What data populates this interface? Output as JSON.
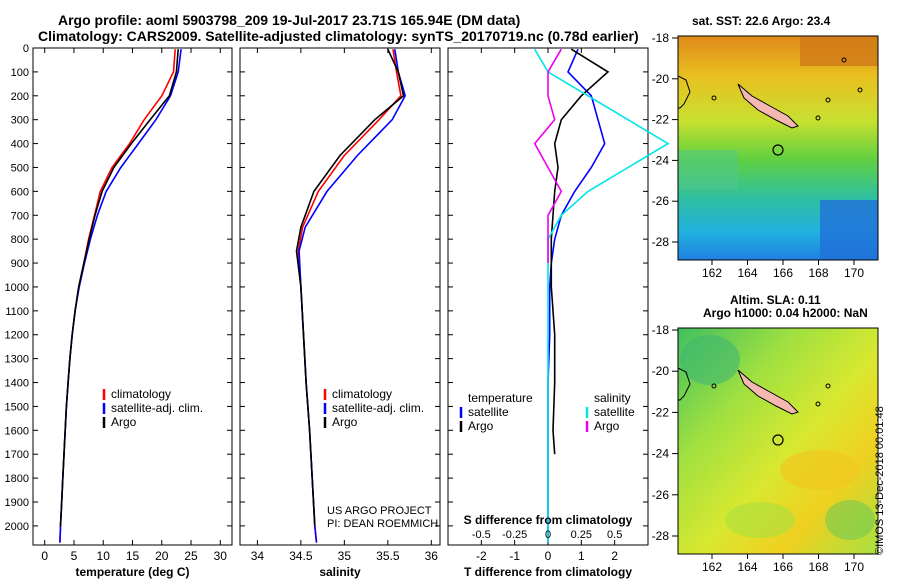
{
  "header": {
    "title_line1": "Argo profile: aoml 5903798_209 19-Jul-2017 23.71S 165.94E (DM data)",
    "title_line2": "Climatology: CARS2009. Satellite-adjusted climatology: synTS_20170719.nc (0.78d earlier)"
  },
  "credits": {
    "line1": "US ARGO PROJECT",
    "line2": "PI: DEAN ROEMMICH"
  },
  "timestamp": "©IMOS 13-Dec-2018 00:01:48",
  "maps": {
    "sst_title": "sat. SST: 22.6 Argo: 23.4",
    "sla_title_line1": "Altim. SLA: 0.11",
    "sla_title_line2": "Argo h1000: 0.04 h2000: NaN",
    "lat_ticks": [
      "-18",
      "-20",
      "-22",
      "-24",
      "-26",
      "-28"
    ],
    "lon_ticks": [
      "162",
      "164",
      "166",
      "168",
      "170"
    ]
  },
  "colors": {
    "climatology": "#ff0000",
    "satellite_adj": "#0000ff",
    "argo": "#000000",
    "satellite_temp": "#0000ff",
    "satellite_sal": "#00e5e5",
    "argo_sal": "#ee00ee"
  },
  "chart_data": [
    {
      "type": "line",
      "xlabel": "temperature (deg C)",
      "ylim": [
        2080,
        0
      ],
      "xlim": [
        -2,
        32
      ],
      "x_ticks": [
        "0",
        "5",
        "10",
        "15",
        "20",
        "25",
        "30"
      ],
      "y_ticks": [
        "0",
        "100",
        "200",
        "300",
        "400",
        "500",
        "600",
        "700",
        "800",
        "900",
        "1000",
        "1100",
        "1200",
        "1300",
        "1400",
        "1500",
        "1600",
        "1700",
        "1800",
        "1900",
        "2000"
      ],
      "legend": [
        "climatology",
        "satellite-adj. clim.",
        "Argo"
      ],
      "series": [
        {
          "name": "climatology",
          "color": "red",
          "points": [
            [
              22.3,
              5
            ],
            [
              22.0,
              100
            ],
            [
              20.0,
              200
            ],
            [
              17.0,
              300
            ],
            [
              14.5,
              400
            ],
            [
              11.5,
              500
            ],
            [
              9.5,
              600
            ],
            [
              8.5,
              700
            ],
            [
              7.5,
              800
            ],
            [
              6.7,
              900
            ],
            [
              5.8,
              1000
            ],
            [
              5.2,
              1100
            ],
            [
              4.7,
              1200
            ],
            [
              4.3,
              1300
            ],
            [
              4.0,
              1400
            ],
            [
              3.7,
              1500
            ],
            [
              3.5,
              1600
            ],
            [
              3.3,
              1700
            ],
            [
              3.1,
              1800
            ],
            [
              2.9,
              1900
            ],
            [
              2.7,
              2000
            ],
            [
              2.6,
              2070
            ]
          ]
        },
        {
          "name": "satellite-adj. clim.",
          "color": "blue",
          "points": [
            [
              23.3,
              5
            ],
            [
              22.8,
              100
            ],
            [
              21.5,
              200
            ],
            [
              19.0,
              300
            ],
            [
              16.0,
              400
            ],
            [
              13.0,
              500
            ],
            [
              10.5,
              600
            ],
            [
              9.0,
              700
            ],
            [
              7.8,
              800
            ],
            [
              6.8,
              900
            ],
            [
              5.9,
              1000
            ],
            [
              5.2,
              1100
            ],
            [
              4.7,
              1200
            ],
            [
              4.3,
              1300
            ],
            [
              4.0,
              1400
            ],
            [
              3.7,
              1500
            ],
            [
              3.5,
              1600
            ],
            [
              3.3,
              1700
            ],
            [
              3.1,
              1800
            ],
            [
              2.9,
              1900
            ],
            [
              2.7,
              2000
            ],
            [
              2.6,
              2070
            ]
          ]
        },
        {
          "name": "Argo",
          "color": "black",
          "points": [
            [
              22.8,
              5
            ],
            [
              22.5,
              100
            ],
            [
              21.3,
              200
            ],
            [
              18.0,
              300
            ],
            [
              14.8,
              400
            ],
            [
              11.8,
              500
            ],
            [
              9.8,
              600
            ],
            [
              8.6,
              700
            ],
            [
              7.6,
              800
            ],
            [
              6.7,
              900
            ],
            [
              5.8,
              1000
            ],
            [
              5.2,
              1100
            ],
            [
              4.7,
              1200
            ],
            [
              4.3,
              1300
            ],
            [
              4.0,
              1400
            ],
            [
              3.7,
              1500
            ],
            [
              3.5,
              1600
            ],
            [
              3.3,
              1700
            ],
            [
              3.1,
              1800
            ],
            [
              2.9,
              1900
            ],
            [
              2.7,
              2000
            ]
          ]
        }
      ]
    },
    {
      "type": "line",
      "xlabel": "salinity",
      "ylim": [
        2080,
        0
      ],
      "xlim": [
        33.8,
        36.1
      ],
      "x_ticks": [
        "34",
        "34.5",
        "35",
        "35.5",
        "36"
      ],
      "legend": [
        "climatology",
        "satellite-adj. clim.",
        "Argo"
      ],
      "series": [
        {
          "name": "climatology",
          "color": "red",
          "points": [
            [
              35.56,
              5
            ],
            [
              35.6,
              100
            ],
            [
              35.65,
              200
            ],
            [
              35.4,
              300
            ],
            [
              35.0,
              450
            ],
            [
              34.7,
              600
            ],
            [
              34.52,
              750
            ],
            [
              34.47,
              850
            ],
            [
              34.5,
              1000
            ],
            [
              34.53,
              1200
            ],
            [
              34.56,
              1400
            ],
            [
              34.6,
              1600
            ],
            [
              34.63,
              1800
            ],
            [
              34.66,
              2000
            ],
            [
              34.68,
              2070
            ]
          ]
        },
        {
          "name": "satellite-adj. clim.",
          "color": "blue",
          "points": [
            [
              35.58,
              5
            ],
            [
              35.62,
              100
            ],
            [
              35.7,
              200
            ],
            [
              35.55,
              300
            ],
            [
              35.15,
              450
            ],
            [
              34.8,
              600
            ],
            [
              34.55,
              750
            ],
            [
              34.48,
              850
            ],
            [
              34.5,
              1000
            ],
            [
              34.53,
              1200
            ],
            [
              34.56,
              1400
            ],
            [
              34.6,
              1600
            ],
            [
              34.63,
              1800
            ],
            [
              34.66,
              2000
            ],
            [
              34.68,
              2070
            ]
          ]
        },
        {
          "name": "Argo",
          "color": "black",
          "points": [
            [
              35.5,
              5
            ],
            [
              35.62,
              100
            ],
            [
              35.68,
              200
            ],
            [
              35.35,
              300
            ],
            [
              34.95,
              450
            ],
            [
              34.65,
              600
            ],
            [
              34.5,
              750
            ],
            [
              34.45,
              850
            ],
            [
              34.5,
              1000
            ],
            [
              34.53,
              1200
            ],
            [
              34.56,
              1400
            ],
            [
              34.6,
              1600
            ],
            [
              34.63,
              1800
            ],
            [
              34.66,
              2000
            ]
          ]
        }
      ]
    },
    {
      "type": "line",
      "xlabel": "T difference from climatology",
      "secondary_xlabel": "S difference from climatology",
      "ylim": [
        2080,
        0
      ],
      "xlim": [
        -3,
        3
      ],
      "x_ticks": [
        "-2",
        "-1",
        "0",
        "1",
        "2"
      ],
      "secondary_x_ticks": [
        "-0.5",
        "-0.25",
        "0",
        "0.25",
        "0.5"
      ],
      "legend_left_title": "temperature",
      "legend_right_title": "salinity",
      "legend_left": [
        "satellite",
        "Argo"
      ],
      "legend_right": [
        "satellite",
        "Argo"
      ],
      "series": [
        {
          "name": "satellite",
          "color": "blue",
          "points": [
            [
              0.9,
              5
            ],
            [
              0.6,
              100
            ],
            [
              1.3,
              200
            ],
            [
              1.5,
              300
            ],
            [
              1.7,
              400
            ],
            [
              1.3,
              500
            ],
            [
              0.8,
              600
            ],
            [
              0.4,
              700
            ],
            [
              0.2,
              800
            ],
            [
              0.1,
              900
            ],
            [
              0.05,
              1000
            ],
            [
              0.05,
              1200
            ],
            [
              0.0,
              1400
            ],
            [
              0.0,
              1600
            ],
            [
              0.0,
              1800
            ],
            [
              0.0,
              2000
            ],
            [
              0.0,
              2070
            ]
          ]
        },
        {
          "name": "Argo",
          "color": "black",
          "points": [
            [
              0.7,
              5
            ],
            [
              1.8,
              100
            ],
            [
              1.0,
              200
            ],
            [
              0.4,
              300
            ],
            [
              0.2,
              400
            ],
            [
              0.3,
              500
            ],
            [
              0.2,
              600
            ],
            [
              0.15,
              700
            ],
            [
              0.1,
              800
            ],
            [
              0.1,
              1000
            ],
            [
              0.2,
              1200
            ],
            [
              0.2,
              1400
            ],
            [
              0.15,
              1600
            ],
            [
              0.2,
              1700
            ]
          ]
        },
        {
          "name": "satellite",
          "color": "cyan",
          "points": [
            [
              -0.1,
              5
            ],
            [
              0.0,
              100
            ],
            [
              0.3,
              200
            ],
            [
              0.6,
              300
            ],
            [
              0.9,
              400
            ],
            [
              0.6,
              500
            ],
            [
              0.3,
              600
            ],
            [
              0.1,
              700
            ],
            [
              0.0,
              800
            ],
            [
              0.0,
              1000
            ],
            [
              0.0,
              1200
            ],
            [
              0.0,
              1400
            ],
            [
              0.0,
              1600
            ],
            [
              0.0,
              1800
            ],
            [
              0.0,
              2000
            ],
            [
              0.0,
              2070
            ]
          ]
        },
        {
          "name": "Argo",
          "color": "magenta",
          "points": [
            [
              0.1,
              5
            ],
            [
              0.0,
              100
            ],
            [
              0.0,
              200
            ],
            [
              0.05,
              300
            ],
            [
              -0.1,
              400
            ],
            [
              0.0,
              500
            ],
            [
              0.1,
              600
            ],
            [
              0.0,
              700
            ],
            [
              0.0,
              800
            ],
            [
              0.0,
              900
            ]
          ]
        }
      ]
    }
  ]
}
